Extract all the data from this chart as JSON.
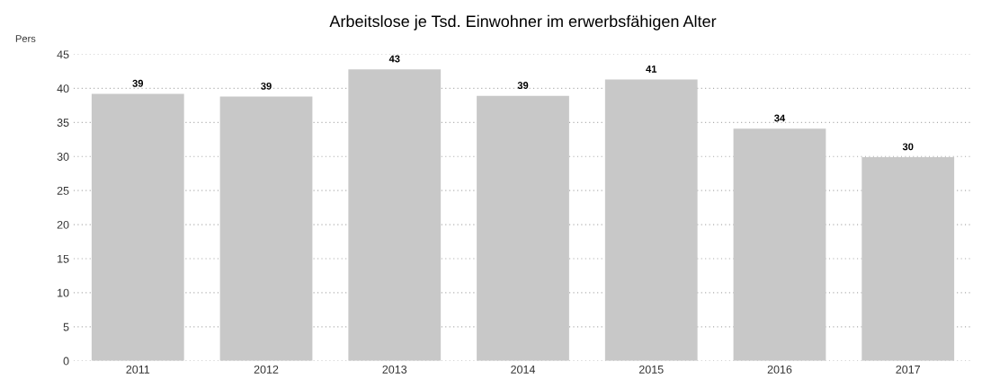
{
  "chart_data": {
    "type": "bar",
    "title": "Arbeitslose je Tsd. Einwohner im erwerbsfähigen Alter",
    "ylabel": "Pers",
    "categories": [
      "2011",
      "2012",
      "2013",
      "2014",
      "2015",
      "2016",
      "2017"
    ],
    "values": [
      39.2,
      38.8,
      42.8,
      38.9,
      41.3,
      34.1,
      29.9
    ],
    "value_labels": [
      "39",
      "39",
      "43",
      "39",
      "41",
      "34",
      "30"
    ],
    "color": "#c8c8c8",
    "ylim": [
      0,
      45
    ],
    "yticks": [
      0,
      5,
      10,
      15,
      20,
      25,
      30,
      35,
      40,
      45
    ],
    "grid": "y"
  }
}
